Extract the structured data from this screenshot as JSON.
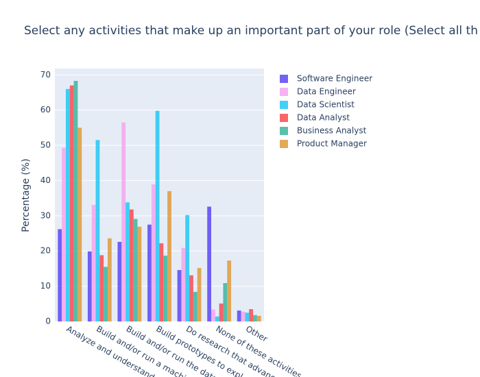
{
  "chart_data": {
    "type": "bar",
    "title": "Select any activities that make up an important part of your role (Select all th",
    "y_label": "Percentage (%)",
    "categories": [
      "Analyze and understand",
      "Build and/or run a machi",
      "Build and/or run the data",
      "Build prototypes to expl",
      "Do research that advanc",
      "None of these activities",
      "Other"
    ],
    "series": [
      {
        "name": "Software Engineer",
        "color": "#5a48f5",
        "values": [
          26.2,
          19.9,
          22.6,
          27.5,
          14.6,
          32.6,
          3.1
        ]
      },
      {
        "name": "Data Engineer",
        "color": "#f5a6ef",
        "values": [
          49.3,
          33.1,
          56.5,
          38.9,
          20.9,
          3.4,
          2.8
        ]
      },
      {
        "name": "Data Scientist",
        "color": "#22c8f5",
        "values": [
          66.0,
          51.5,
          33.8,
          59.8,
          30.2,
          1.4,
          2.5
        ]
      },
      {
        "name": "Data Analyst",
        "color": "#f84b50",
        "values": [
          67.0,
          18.8,
          31.8,
          22.2,
          13.1,
          5.1,
          3.5
        ]
      },
      {
        "name": "Business Analyst",
        "color": "#3db59d",
        "values": [
          68.3,
          15.5,
          29.1,
          18.7,
          8.4,
          10.9,
          1.8
        ]
      },
      {
        "name": "Product Manager",
        "color": "#de9b3a",
        "values": [
          55.0,
          23.6,
          26.9,
          37.0,
          15.2,
          17.3,
          1.6
        ]
      }
    ],
    "ylim": [
      0,
      71.8
    ],
    "yticks": [
      0,
      10,
      20,
      30,
      40,
      50,
      60,
      70
    ],
    "grid": true,
    "legend": "right"
  }
}
